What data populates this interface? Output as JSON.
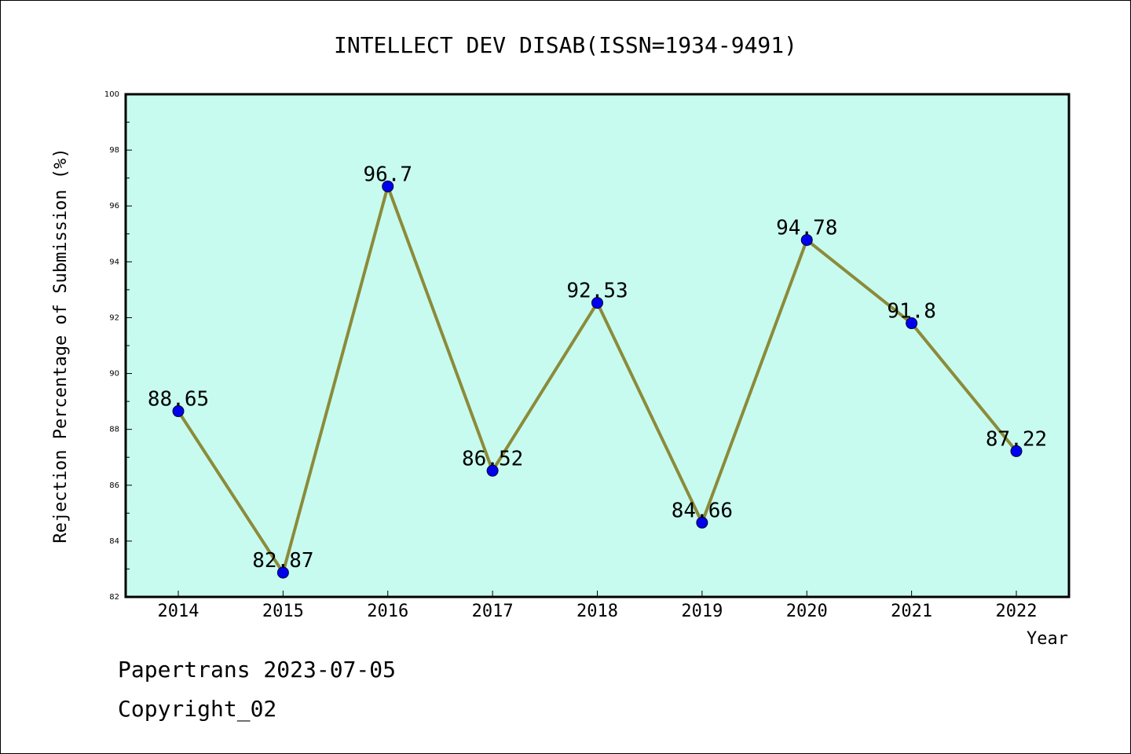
{
  "chart_data": {
    "type": "line",
    "title": "INTELLECT DEV DISAB(ISSN=1934-9491)",
    "xlabel": "Year",
    "ylabel": "Rejection Percentage of Submission (%)",
    "x": [
      "2014",
      "2015",
      "2016",
      "2017",
      "2018",
      "2019",
      "2020",
      "2021",
      "2022"
    ],
    "series": [
      {
        "values": [
          88.65,
          82.87,
          96.7,
          86.52,
          92.53,
          84.66,
          94.78,
          91.8,
          87.22
        ],
        "labels": [
          "88.65",
          "82.87",
          "96.7",
          "86.52",
          "92.53",
          "84.66",
          "94.78",
          "91.8",
          "87.22"
        ]
      }
    ],
    "ylim": [
      82,
      100
    ],
    "yticks": [
      "82",
      "84",
      "86",
      "88",
      "90",
      "92",
      "94",
      "96",
      "98",
      "100"
    ],
    "grid": false,
    "colors": {
      "plot_background": "#c8fbef",
      "line": "#8b8b3a",
      "marker": "#0000ee"
    }
  },
  "footer": {
    "line1": "Papertrans 2023-07-05",
    "line2": "Copyright_02"
  }
}
